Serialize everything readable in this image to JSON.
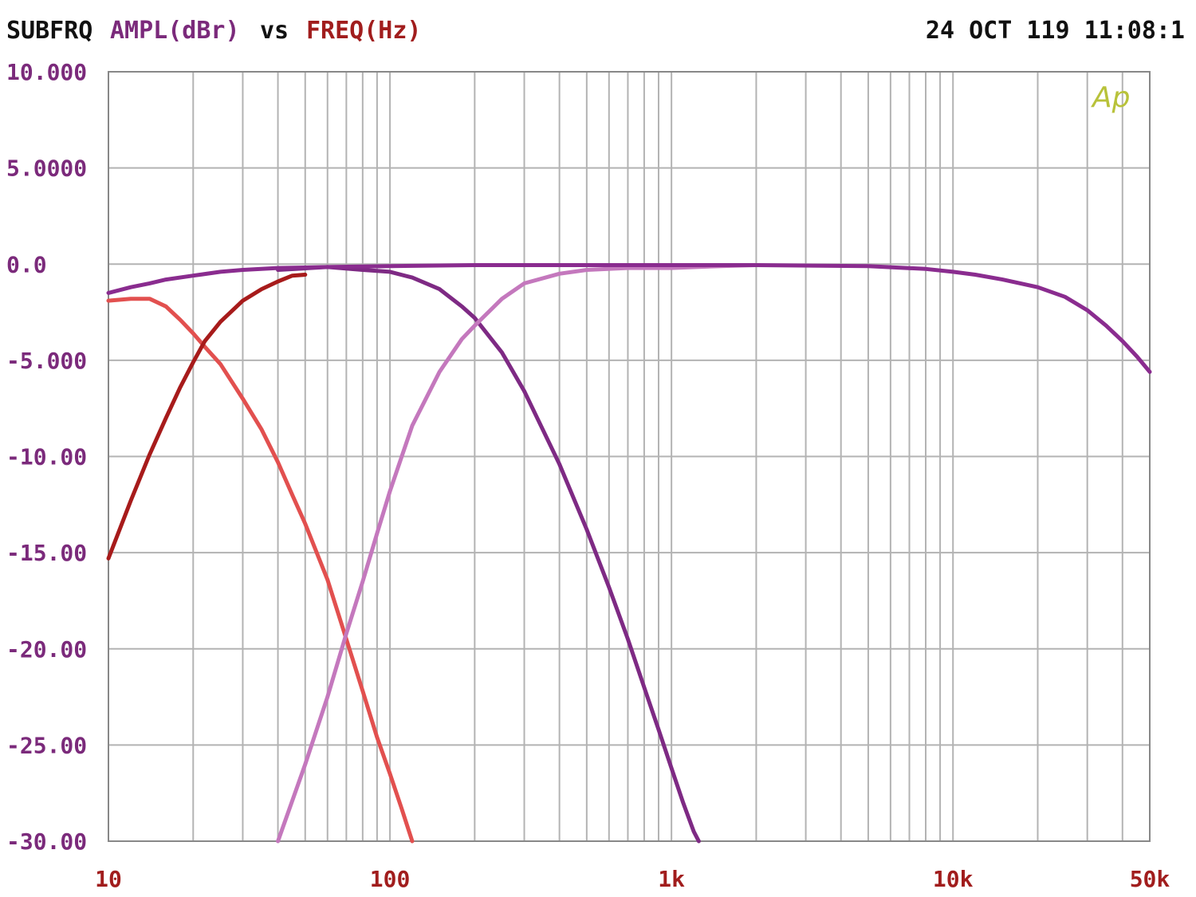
{
  "header": {
    "program": "SUBFRQ",
    "y_name": "AMPL(dBr)",
    "vs": "vs",
    "x_name": "FREQ(Hz)",
    "timestamp": "24 OCT 119 11:08:1"
  },
  "logo": "Ap",
  "colors": {
    "background": "#ffffff",
    "grid": "#b3b3b3",
    "frame": "#888888",
    "text_black": "#111111",
    "y_text": "#7b2a7b",
    "x_text": "#a11d1d",
    "logo": "#b8c23a"
  },
  "chart_data": {
    "type": "line",
    "x_scale": "log",
    "xlim": [
      10,
      50000
    ],
    "ylim": [
      -30,
      10
    ],
    "grid": true,
    "xlabel": "FREQ(Hz)",
    "ylabel": "AMPL(dBr)",
    "x_ticks": [
      10,
      100,
      1000,
      10000,
      50000
    ],
    "x_tick_labels": [
      "10",
      "100",
      "1k",
      "10k",
      "50k"
    ],
    "y_ticks": [
      10,
      5,
      0,
      -5,
      -10,
      -15,
      -20,
      -25,
      -30
    ],
    "y_tick_labels": [
      "10.000",
      "5.0000",
      "0.0",
      "-5.000",
      "-10.00",
      "-15.00",
      "-20.00",
      "-25.00",
      "-30.00"
    ],
    "series": [
      {
        "color": "#e2504f",
        "points": [
          [
            10,
            -1.9
          ],
          [
            12,
            -1.8
          ],
          [
            14,
            -1.8
          ],
          [
            16,
            -2.2
          ],
          [
            18,
            -2.9
          ],
          [
            20,
            -3.6
          ],
          [
            22,
            -4.3
          ],
          [
            25,
            -5.2
          ],
          [
            30,
            -7.0
          ],
          [
            35,
            -8.6
          ],
          [
            40,
            -10.3
          ],
          [
            45,
            -12.0
          ],
          [
            50,
            -13.5
          ],
          [
            60,
            -16.4
          ],
          [
            70,
            -19.5
          ],
          [
            80,
            -22.2
          ],
          [
            90,
            -24.6
          ],
          [
            100,
            -26.5
          ],
          [
            110,
            -28.3
          ],
          [
            120,
            -30.0
          ]
        ]
      },
      {
        "color": "#a71b1b",
        "points": [
          [
            10,
            -15.3
          ],
          [
            12,
            -12.3
          ],
          [
            14,
            -9.9
          ],
          [
            16,
            -8.0
          ],
          [
            18,
            -6.4
          ],
          [
            20,
            -5.1
          ],
          [
            22,
            -4.0
          ],
          [
            25,
            -3.0
          ],
          [
            30,
            -1.9
          ],
          [
            35,
            -1.3
          ],
          [
            40,
            -0.9
          ],
          [
            45,
            -0.6
          ],
          [
            50,
            -0.55
          ]
        ]
      },
      {
        "color": "#7e2a84",
        "points": [
          [
            40,
            -0.3
          ],
          [
            60,
            -0.15
          ],
          [
            80,
            -0.3
          ],
          [
            100,
            -0.4
          ],
          [
            120,
            -0.7
          ],
          [
            150,
            -1.3
          ],
          [
            180,
            -2.2
          ],
          [
            200,
            -2.8
          ],
          [
            250,
            -4.6
          ],
          [
            300,
            -6.6
          ],
          [
            400,
            -10.4
          ],
          [
            500,
            -13.8
          ],
          [
            600,
            -16.8
          ],
          [
            700,
            -19.5
          ],
          [
            800,
            -22.0
          ],
          [
            900,
            -24.2
          ],
          [
            1000,
            -26.2
          ],
          [
            1100,
            -28.0
          ],
          [
            1200,
            -29.5
          ],
          [
            1250,
            -30.0
          ]
        ]
      },
      {
        "color": "#c478bd",
        "points": [
          [
            40,
            -30.0
          ],
          [
            50,
            -26.0
          ],
          [
            60,
            -22.5
          ],
          [
            70,
            -19.2
          ],
          [
            80,
            -16.5
          ],
          [
            90,
            -14.0
          ],
          [
            100,
            -11.8
          ],
          [
            120,
            -8.4
          ],
          [
            150,
            -5.6
          ],
          [
            180,
            -3.9
          ],
          [
            200,
            -3.2
          ],
          [
            250,
            -1.8
          ],
          [
            300,
            -1.0
          ],
          [
            400,
            -0.5
          ],
          [
            500,
            -0.3
          ],
          [
            700,
            -0.2
          ],
          [
            1000,
            -0.2
          ],
          [
            1500,
            -0.1
          ],
          [
            2000,
            -0.05
          ]
        ]
      },
      {
        "color": "#8a2c8f",
        "points": [
          [
            10,
            -1.5
          ],
          [
            12,
            -1.2
          ],
          [
            14,
            -1.0
          ],
          [
            16,
            -0.8
          ],
          [
            20,
            -0.6
          ],
          [
            25,
            -0.4
          ],
          [
            30,
            -0.3
          ],
          [
            40,
            -0.2
          ],
          [
            60,
            -0.15
          ],
          [
            100,
            -0.1
          ],
          [
            200,
            -0.05
          ],
          [
            500,
            -0.05
          ],
          [
            1000,
            -0.05
          ],
          [
            2000,
            -0.05
          ],
          [
            5000,
            -0.1
          ],
          [
            8000,
            -0.25
          ],
          [
            10000,
            -0.4
          ],
          [
            12000,
            -0.55
          ],
          [
            15000,
            -0.8
          ],
          [
            20000,
            -1.2
          ],
          [
            25000,
            -1.7
          ],
          [
            30000,
            -2.4
          ],
          [
            35000,
            -3.2
          ],
          [
            40000,
            -4.0
          ],
          [
            45000,
            -4.8
          ],
          [
            50000,
            -5.6
          ]
        ]
      }
    ]
  }
}
